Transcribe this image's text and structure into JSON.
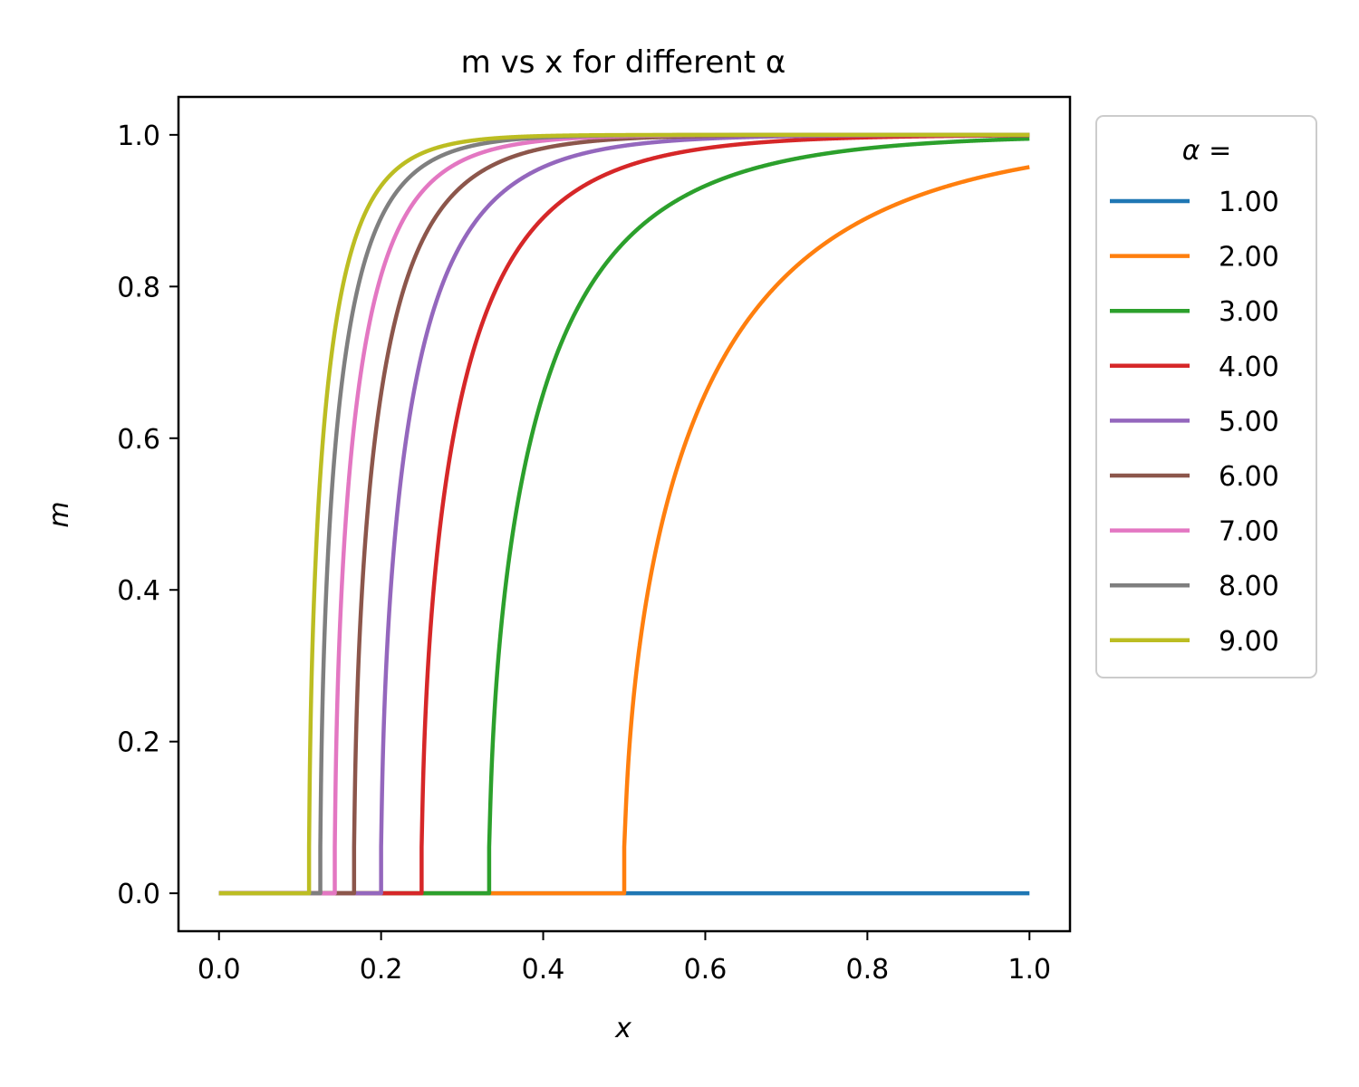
{
  "chart_data": {
    "type": "line",
    "title": "m vs x for different α",
    "xlabel": "x",
    "ylabel": "m",
    "xlim": [
      -0.05,
      1.05
    ],
    "ylim": [
      -0.05,
      1.05
    ],
    "xticks": [
      "0.0",
      "0.2",
      "0.4",
      "0.6",
      "0.8",
      "1.0"
    ],
    "yticks": [
      "0.0",
      "0.2",
      "0.4",
      "0.6",
      "0.8",
      "1.0"
    ],
    "grid": false,
    "legend": {
      "title": "α =",
      "placement": "outside-right-top"
    },
    "series": [
      {
        "name": "1.00",
        "alpha": 1,
        "color": "#1f77b4"
      },
      {
        "name": "2.00",
        "alpha": 2,
        "color": "#ff7f0e"
      },
      {
        "name": "3.00",
        "alpha": 3,
        "color": "#2ca02c"
      },
      {
        "name": "4.00",
        "alpha": 4,
        "color": "#d62728"
      },
      {
        "name": "5.00",
        "alpha": 5,
        "color": "#9467bd"
      },
      {
        "name": "6.00",
        "alpha": 6,
        "color": "#8c564b"
      },
      {
        "name": "7.00",
        "alpha": 7,
        "color": "#e377c2"
      },
      {
        "name": "8.00",
        "alpha": 8,
        "color": "#7f7f7f"
      },
      {
        "name": "9.00",
        "alpha": 9,
        "color": "#bcbd22"
      }
    ],
    "x_range": [
      0,
      1
    ]
  }
}
